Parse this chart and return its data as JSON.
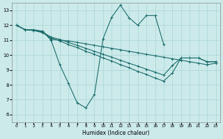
{
  "xlabel": "Humidex (Indice chaleur)",
  "bg_color": "#cceaea",
  "line_color": "#1a6b6b",
  "grid_color": "#a8d4d4",
  "xlim": [
    -0.5,
    23.5
  ],
  "ylim": [
    5.5,
    13.5
  ],
  "xticks": [
    0,
    1,
    2,
    3,
    4,
    5,
    6,
    7,
    8,
    9,
    10,
    11,
    12,
    13,
    14,
    15,
    16,
    17,
    18,
    19,
    20,
    21,
    22,
    23
  ],
  "yticks": [
    6,
    7,
    8,
    9,
    10,
    11,
    12,
    13
  ],
  "jagged_x": [
    0,
    1,
    2,
    3,
    4,
    5,
    6,
    7,
    8,
    9,
    10,
    11,
    12,
    13,
    14,
    15,
    16,
    17
  ],
  "jagged_y": [
    12.0,
    11.7,
    11.7,
    11.6,
    11.0,
    9.35,
    8.1,
    6.8,
    6.45,
    7.35,
    11.1,
    12.55,
    13.35,
    12.5,
    12.0,
    12.65,
    12.65,
    10.7
  ],
  "line_a_x": [
    0,
    1,
    2,
    3,
    4,
    5,
    6,
    7,
    8,
    9,
    10,
    11,
    12,
    13,
    14,
    15,
    16,
    17,
    18,
    19,
    20,
    21,
    22,
    23
  ],
  "line_a_y": [
    12.0,
    11.7,
    11.65,
    11.6,
    11.05,
    11.0,
    10.95,
    10.85,
    10.75,
    10.65,
    10.55,
    10.45,
    10.35,
    10.25,
    10.15,
    10.05,
    9.95,
    9.85,
    9.75,
    9.65,
    9.55,
    9.45,
    9.35,
    9.45
  ],
  "line_b_x": [
    0,
    1,
    2,
    3,
    4,
    5,
    6,
    7,
    8,
    9,
    10,
    11,
    12,
    13,
    14,
    15,
    16,
    17,
    18,
    19,
    20,
    21,
    22,
    23
  ],
  "line_b_y": [
    12.0,
    11.7,
    11.65,
    11.55,
    11.2,
    11.05,
    10.85,
    10.65,
    10.45,
    10.25,
    10.05,
    9.85,
    9.65,
    9.45,
    9.25,
    9.05,
    8.85,
    8.65,
    9.3,
    9.8,
    9.8,
    9.8,
    9.55,
    9.55
  ],
  "line_c_x": [
    0,
    1,
    2,
    3,
    4,
    5,
    6,
    7,
    8,
    9,
    10,
    11,
    12,
    13,
    14,
    15,
    16,
    17,
    18,
    19,
    20,
    21,
    22,
    23
  ],
  "line_c_y": [
    12.0,
    11.7,
    11.65,
    11.5,
    11.15,
    10.95,
    10.7,
    10.5,
    10.25,
    10.05,
    9.8,
    9.6,
    9.35,
    9.15,
    8.9,
    8.7,
    8.45,
    8.25,
    8.8,
    9.8,
    9.8,
    9.8,
    9.55,
    9.55
  ]
}
